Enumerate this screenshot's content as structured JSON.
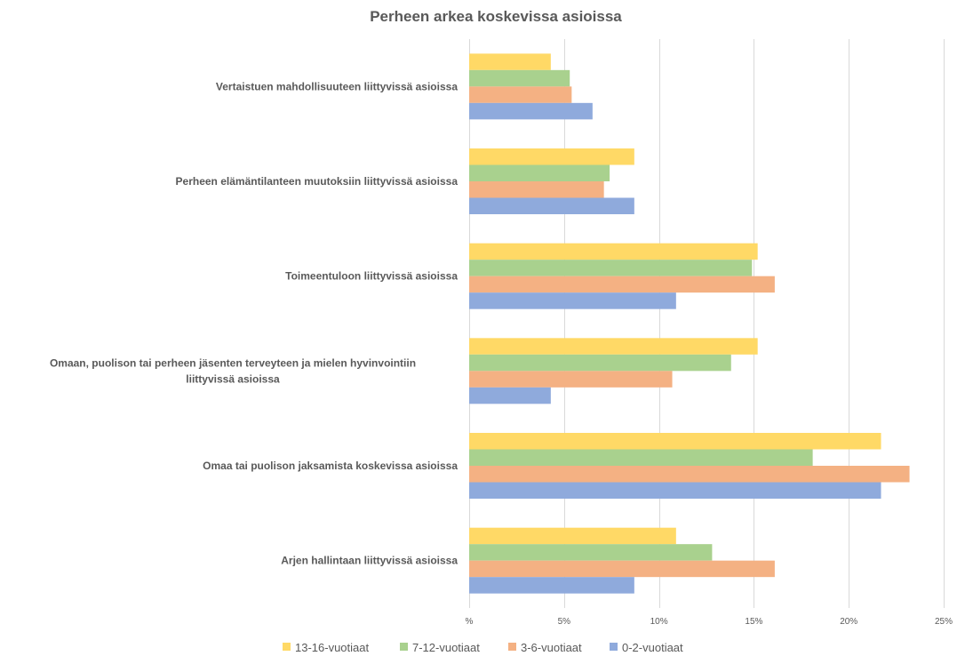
{
  "chart_data": {
    "type": "bar",
    "orientation": "horizontal",
    "title": "Perheen arkea koskevissa asioissa",
    "categories": [
      "Vertaistuen mahdollisuuteen liittyvissä asioissa",
      "Perheen elämäntilanteen muutoksiin liittyvissä asioissa",
      "Toimeentuloon liittyvissä asioissa",
      "Omaan, puolison tai perheen jäsenten terveyteen ja mielen hyvinvointiin liittyvissä asioissa",
      "Omaa tai puolison jaksamista koskevissa asioissa",
      "Arjen hallintaan liittyvissä asioissa"
    ],
    "series": [
      {
        "name": "13-16-vuotiaat",
        "color": "#ffd966",
        "values": [
          4.3,
          8.7,
          15.2,
          15.2,
          21.7,
          10.9
        ]
      },
      {
        "name": "7-12-vuotiaat",
        "color": "#a9d18e",
        "values": [
          5.3,
          7.4,
          14.9,
          13.8,
          18.1,
          12.8
        ]
      },
      {
        "name": "3-6-vuotiaat",
        "color": "#f4b183",
        "values": [
          5.4,
          7.1,
          16.1,
          10.7,
          23.2,
          16.1
        ]
      },
      {
        "name": "0-2-vuotiaat",
        "color": "#8faadc",
        "values": [
          6.5,
          8.7,
          10.9,
          4.3,
          21.7,
          8.7
        ]
      }
    ],
    "xlim": [
      0,
      25
    ],
    "xticks": [
      0,
      5,
      10,
      15,
      20,
      25
    ],
    "xtick_labels": [
      "%",
      "5%",
      "10%",
      "15%",
      "20%",
      "25%"
    ],
    "grid": true,
    "legend_position": "bottom"
  }
}
